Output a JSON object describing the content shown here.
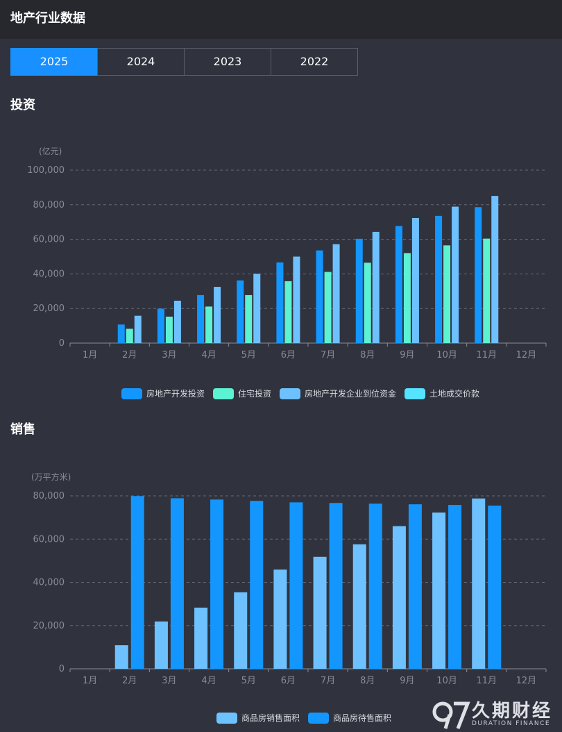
{
  "header": {
    "title": "地产行业数据"
  },
  "tabs": [
    {
      "label": "2025",
      "active": true
    },
    {
      "label": "2024",
      "active": false
    },
    {
      "label": "2023",
      "active": false
    },
    {
      "label": "2022",
      "active": false
    }
  ],
  "sections": {
    "investment": "投资",
    "sales": "销售"
  },
  "colors": {
    "series_blue": "#1496ff",
    "series_green": "#5cf2d2",
    "series_lightblue": "#6ec1ff",
    "series_cyan": "#55e3ff"
  },
  "chart_data": [
    {
      "type": "bar",
      "title": "投资",
      "ylabel": "(亿元)",
      "ylim": [
        0,
        100000
      ],
      "yticks": [
        0,
        20000,
        40000,
        60000,
        80000,
        100000
      ],
      "ytick_labels": [
        "0",
        "20,000",
        "40,000",
        "60,000",
        "80,000",
        "100,000"
      ],
      "categories": [
        "1月",
        "2月",
        "3月",
        "4月",
        "5月",
        "6月",
        "7月",
        "8月",
        "9月",
        "10月",
        "11月",
        "12月"
      ],
      "legend_position": "bottom",
      "series": [
        {
          "name": "房地产开发投资",
          "color": "#1496ff",
          "values": [
            null,
            10720,
            19904,
            27730,
            36234,
            46658,
            53580,
            60309,
            67706,
            73563,
            78591,
            null
          ]
        },
        {
          "name": "住宅投资",
          "color": "#5cf2d2",
          "values": [
            null,
            8256,
            15287,
            21123,
            27730,
            35770,
            41150,
            46470,
            52045,
            56500,
            60400,
            null
          ]
        },
        {
          "name": "房地产开发企业到位资金",
          "color": "#6ec1ff",
          "values": [
            null,
            15800,
            24500,
            32500,
            40100,
            50000,
            57200,
            64300,
            72300,
            78900,
            85100,
            null
          ]
        },
        {
          "name": "土地成交价款",
          "color": "#55e3ff",
          "values": [
            null,
            null,
            null,
            null,
            null,
            null,
            null,
            null,
            null,
            null,
            null,
            null
          ]
        }
      ]
    },
    {
      "type": "bar",
      "title": "销售",
      "ylabel": "(万平方米)",
      "ylim": [
        0,
        80000
      ],
      "yticks": [
        0,
        20000,
        40000,
        60000,
        80000
      ],
      "ytick_labels": [
        "0",
        "20,000",
        "40,000",
        "60,000",
        "80,000"
      ],
      "categories": [
        "1月",
        "2月",
        "3月",
        "4月",
        "5月",
        "6月",
        "7月",
        "8月",
        "9月",
        "10月",
        "11月",
        "12月"
      ],
      "legend_position": "bottom",
      "series": [
        {
          "name": "商品房销售面积",
          "color": "#6ec1ff",
          "values": [
            null,
            10900,
            21900,
            28300,
            35400,
            45900,
            51800,
            57600,
            66000,
            72300,
            78800,
            null
          ]
        },
        {
          "name": "商品房待售面积",
          "color": "#1496ff",
          "values": [
            null,
            79900,
            78900,
            78300,
            77700,
            77000,
            76700,
            76400,
            76100,
            75800,
            75500,
            null
          ]
        }
      ]
    }
  ],
  "watermark": {
    "logo": "97",
    "name_cn": "久期财经",
    "name_en": "DURATION FINANCE"
  }
}
